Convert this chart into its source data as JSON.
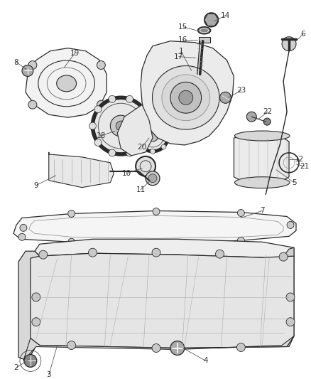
{
  "background_color": "#ffffff",
  "line_color": "#2a2a2a",
  "label_color": "#333333",
  "fig_width": 4.38,
  "fig_height": 5.33,
  "dpi": 100
}
